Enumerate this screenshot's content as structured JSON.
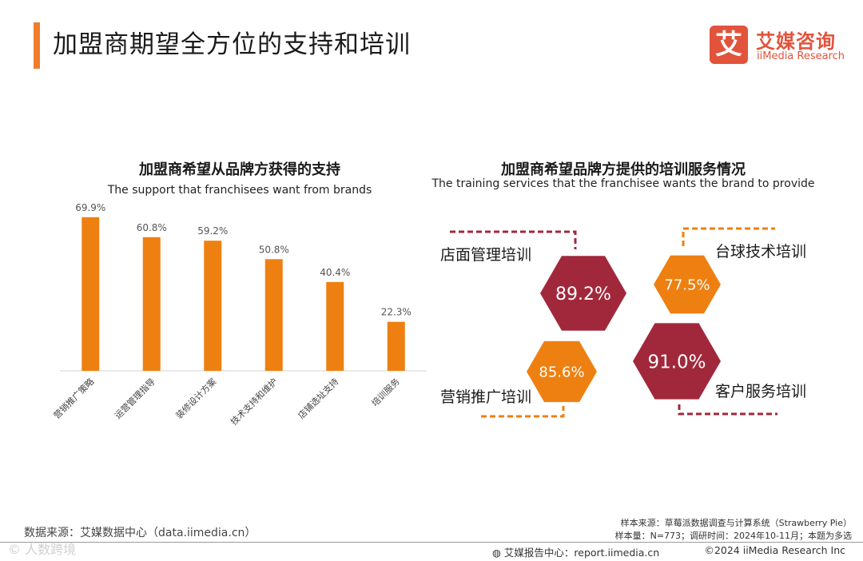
{
  "header": {
    "title": "加盟商期望全方位的支持和培训",
    "logo_mark": "艾",
    "logo_cn": "艾媒咨询",
    "logo_en": "iiMedia Research"
  },
  "colors": {
    "accent": "#f07d2d",
    "bar": "#ee8011",
    "hex_red": "#a1283b",
    "hex_orange": "#ee8011",
    "logo": "#e2533c"
  },
  "left_chart": {
    "title": "加盟商希望从品牌方获得的支持",
    "subtitle": "The support that franchisees want from brands"
  },
  "right_chart": {
    "title": "加盟商希望品牌方提供的培训服务情况",
    "subtitle": "The training services that the franchisee wants the brand to provide"
  },
  "chart_data": [
    {
      "type": "bar",
      "title": "加盟商希望从品牌方获得的支持",
      "subtitle": "The support that franchisees want from brands",
      "categories": [
        "营销推广策略",
        "运营管理指导",
        "装修设计方案",
        "技术支持和维护",
        "店铺选址支持",
        "培训服务"
      ],
      "values": [
        69.9,
        60.8,
        59.2,
        50.8,
        40.4,
        22.3
      ],
      "labels": [
        "69.9%",
        "60.8%",
        "59.2%",
        "50.8%",
        "40.4%",
        "22.3%"
      ],
      "unit": "%",
      "ylim": [
        0,
        80
      ],
      "grid": false
    },
    {
      "type": "hexagon-infographic",
      "title": "加盟商希望品牌方提供的培训服务情况",
      "subtitle": "The training services that the franchisee wants the brand to provide",
      "items": [
        {
          "name": "店面管理培训",
          "value": 89.2,
          "label": "89.2%",
          "color": "#a1283b"
        },
        {
          "name": "台球技术培训",
          "value": 77.5,
          "label": "77.5%",
          "color": "#ee8011"
        },
        {
          "name": "营销推广培训",
          "value": 85.6,
          "label": "85.6%",
          "color": "#ee8011"
        },
        {
          "name": "客户服务培训",
          "value": 91.0,
          "label": "91.0%",
          "color": "#a1283b"
        }
      ]
    }
  ],
  "footer": {
    "source": "数据来源：艾媒数据中心（data.iimedia.cn）",
    "sample_source": "样本来源：草莓派数据调查与计算系统（Strawberry Pie）",
    "sample_info": "样本量：N=773；调研时间：2024年10-11月；本题为多选",
    "report_center": "艾媒报告中心：report.iimedia.cn",
    "copyright": "©2024  iiMedia Research  Inc",
    "watermark": "© 人数跨境"
  }
}
